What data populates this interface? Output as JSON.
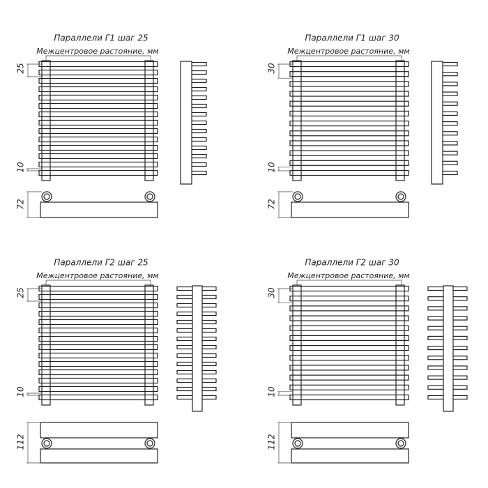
{
  "panels": [
    {
      "title": "Параллели Г1 шаг 25",
      "subtitle": "Межцентровое растояние, мм",
      "pitch": "25",
      "gap": "10",
      "depth": "72"
    },
    {
      "title": "Параллели Г1 шаг 30",
      "subtitle": "Межцентровое растояние, мм",
      "pitch": "30",
      "gap": "10",
      "depth": "72"
    },
    {
      "title": "Параллели Г2 шаг 25",
      "subtitle": "Межцентровое растояние, мм",
      "pitch": "25",
      "gap": "10",
      "depth": "112"
    },
    {
      "title": "Параллели Г2 шаг 30",
      "subtitle": "Межцентровое растояние, мм",
      "pitch": "30",
      "gap": "10",
      "depth": "112"
    }
  ]
}
